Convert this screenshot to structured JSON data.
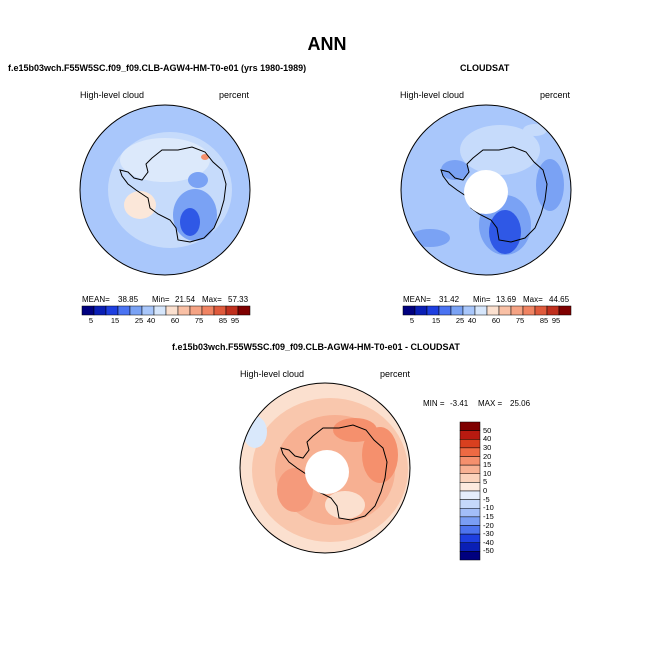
{
  "page_title": "ANN",
  "colors": {
    "ocean_base": "#a9c7fb",
    "coast": "#000000",
    "pos1": "#fbe0cf",
    "pos2": "#f9b999",
    "pos3": "#f59a7b",
    "neg1": "#d9e8fb",
    "neg2": "#7aa2f4",
    "neg3": "#2f58e6"
  },
  "chart_data": [
    {
      "type": "heatmap",
      "title": "f.e15b03wch.F55W5SC.f09_f09.CLB-AGW4-HM-T0-e01 (yrs 1980-1989)",
      "left_label": "High-level cloud",
      "right_label": "percent",
      "stats": {
        "mean_label": "MEAN=",
        "mean": "38.85",
        "min_label": "Min=",
        "min": "21.54",
        "max_label": "Max=",
        "max": "57.33"
      },
      "colorbar": {
        "orientation": "horizontal",
        "colors": [
          "#00007f",
          "#0a1fb5",
          "#1e3fe0",
          "#4a73f2",
          "#7aa2f4",
          "#a9c7fb",
          "#d6e6fb",
          "#fbe0cf",
          "#f9c0a5",
          "#f5a384",
          "#f08463",
          "#df5a3c",
          "#c0301e",
          "#7f0000"
        ],
        "labels": [
          "5",
          "15",
          "25",
          "40",
          "60",
          "75",
          "85",
          "95"
        ]
      }
    },
    {
      "type": "heatmap",
      "title": "CLOUDSAT",
      "left_label": "High-level cloud",
      "right_label": "percent",
      "stats": {
        "mean_label": "MEAN=",
        "mean": "31.42",
        "min_label": "Min=",
        "min": "13.69",
        "max_label": "Max=",
        "max": "44.65"
      },
      "colorbar": {
        "orientation": "horizontal",
        "colors": [
          "#00007f",
          "#0a1fb5",
          "#1e3fe0",
          "#4a73f2",
          "#7aa2f4",
          "#a9c7fb",
          "#d6e6fb",
          "#fbe0cf",
          "#f9c0a5",
          "#f5a384",
          "#f08463",
          "#df5a3c",
          "#c0301e",
          "#7f0000"
        ],
        "labels": [
          "5",
          "15",
          "25",
          "40",
          "60",
          "75",
          "85",
          "95"
        ]
      }
    },
    {
      "type": "heatmap",
      "title": "f.e15b03wch.F55W5SC.f09_f09.CLB-AGW4-HM-T0-e01 - CLOUDSAT",
      "left_label": "High-level cloud",
      "right_label": "percent",
      "stats": {
        "min_label": "MIN =",
        "min": "-3.41",
        "max_label": "MAX =",
        "max": "25.06"
      },
      "colorbar": {
        "orientation": "vertical",
        "colors": [
          "#7f0000",
          "#b81a10",
          "#d8401f",
          "#ee6a43",
          "#f5906d",
          "#f8b193",
          "#fbd2bb",
          "#fdeadf",
          "#e6eefb",
          "#c5d8fb",
          "#a3bef8",
          "#7a9ef4",
          "#4d74ee",
          "#1e3fe0",
          "#0a1fb5",
          "#00007f"
        ],
        "labels": [
          "50",
          "40",
          "30",
          "20",
          "15",
          "10",
          "5",
          "0",
          "-5",
          "-10",
          "-15",
          "-20",
          "-30",
          "-40",
          "-50"
        ]
      }
    }
  ]
}
